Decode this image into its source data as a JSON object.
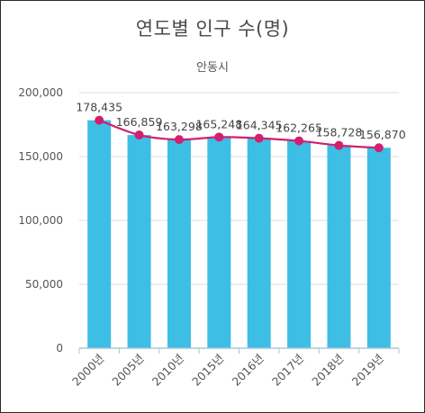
{
  "chart_data": {
    "type": "bar",
    "title": "연도별 인구 수(명)",
    "subtitle": "안동시",
    "categories": [
      "2000년",
      "2005년",
      "2010년",
      "2015년",
      "2016년",
      "2017년",
      "2018년",
      "2019년"
    ],
    "series": [
      {
        "type": "bar",
        "values": [
          178435,
          166859,
          163298,
          165248,
          164345,
          162265,
          158728,
          156870
        ]
      },
      {
        "type": "line",
        "values": [
          178435,
          166859,
          163298,
          165248,
          164345,
          162265,
          158728,
          156870
        ]
      }
    ],
    "data_labels": [
      "178,435",
      "166,859",
      "163,298",
      "165,248",
      "164,345",
      "162,265",
      "158,728",
      "156,870"
    ],
    "y_ticks": [
      0,
      50000,
      100000,
      150000,
      200000
    ],
    "y_tick_labels": [
      "0",
      "50,000",
      "100,000",
      "150,000",
      "200,000"
    ],
    "ylim": [
      0,
      200000
    ],
    "grid": true,
    "legend": "none",
    "colors": {
      "bar": "#3dbee5",
      "line": "#d21f6e",
      "grid": "#dddddd",
      "axis": "#a9c9d6"
    }
  }
}
